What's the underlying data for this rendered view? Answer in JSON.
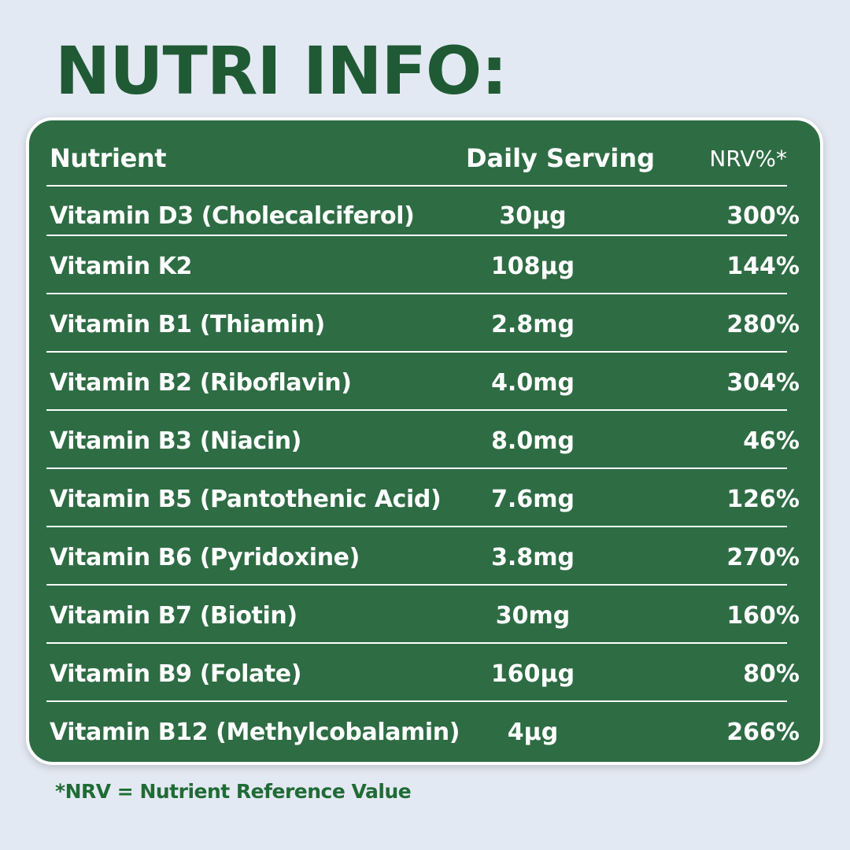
{
  "title": "NUTRI INFO:",
  "table": {
    "headers": {
      "nutrient": "Nutrient",
      "daily_serving": "Daily Serving",
      "nrv": "NRV%*"
    },
    "rows": [
      {
        "nutrient": "Vitamin D3 (Cholecalciferol)",
        "daily_serving": "30µg",
        "nrv": "300%"
      },
      {
        "nutrient": "Vitamin K2",
        "daily_serving": "108µg",
        "nrv": "144%"
      },
      {
        "nutrient": "Vitamin B1 (Thiamin)",
        "daily_serving": "2.8mg",
        "nrv": "280%"
      },
      {
        "nutrient": "Vitamin B2 (Riboflavin)",
        "daily_serving": "4.0mg",
        "nrv": "304%"
      },
      {
        "nutrient": "Vitamin B3 (Niacin)",
        "daily_serving": "8.0mg",
        "nrv": "46%"
      },
      {
        "nutrient": "Vitamin B5 (Pantothenic Acid)",
        "daily_serving": "7.6mg",
        "nrv": "126%"
      },
      {
        "nutrient": "Vitamin B6 (Pyridoxine)",
        "daily_serving": "3.8mg",
        "nrv": "270%"
      },
      {
        "nutrient": "Vitamin B7 (Biotin)",
        "daily_serving": "30mg",
        "nrv": "160%"
      },
      {
        "nutrient": "Vitamin B9 (Folate)",
        "daily_serving": "160µg",
        "nrv": "80%"
      },
      {
        "nutrient": "Vitamin B12 (Methylcobalamin)",
        "daily_serving": "4µg",
        "nrv": "266%"
      }
    ]
  },
  "footnote": "*NRV = Nutrient Reference Value",
  "colors": {
    "background": "#e3e9f2",
    "title": "#1f5a35",
    "card": "#2e6c44",
    "card_text": "#ffffff",
    "footnote": "#1f6b35"
  }
}
